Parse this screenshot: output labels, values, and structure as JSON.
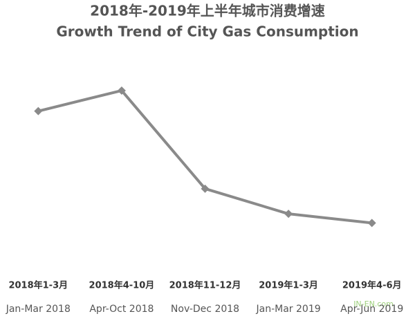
{
  "chart_data": {
    "type": "line",
    "title": "2018年-2019年上半年城市消费增速",
    "subtitle": "Growth Trend of City Gas Consumption",
    "categories": [
      "2018年1-3月",
      "2018年4-10月",
      "2018年11-12月",
      "2019年1-3月",
      "2019年4-6月"
    ],
    "category_subtitles": [
      "Jan-Mar 2018",
      "Apr-Oct 2018",
      "Nov-Dec 2018",
      "Jan-Mar 2019",
      "Apr-Jun 2019"
    ],
    "values": [
      13.9,
      15.7,
      7.1,
      4.9,
      4.1
    ],
    "color": "#8a8a8a",
    "ylim": [
      0,
      20
    ],
    "watermark": "IN-EN.com"
  }
}
